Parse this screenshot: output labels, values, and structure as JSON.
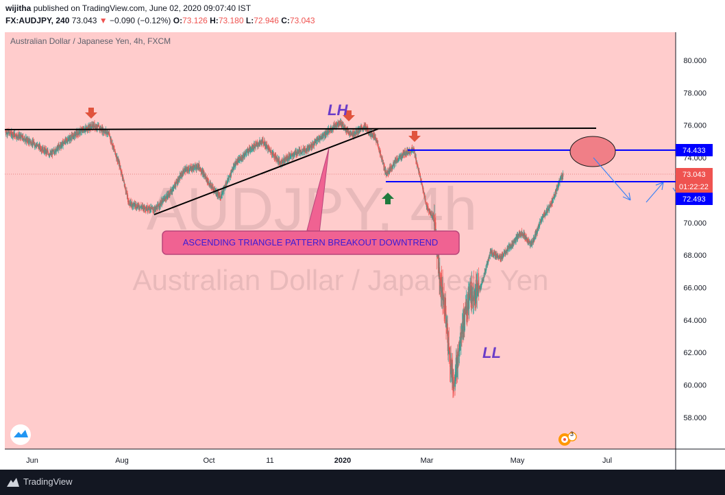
{
  "header": {
    "author": "wijitha",
    "published_text": "published on TradingView.com, June 02, 2020 09:07:40 IST",
    "symbol": "FX:AUDJPY, 240",
    "last": "73.043",
    "change": "−0.090 (−0.12%)",
    "o_label": "O:",
    "o": "73.126",
    "h_label": "H:",
    "h": "73.180",
    "l_label": "L:",
    "l": "72.946",
    "c_label": "C:",
    "c": "73.043"
  },
  "chart": {
    "legend": "Australian Dollar / Japanese Yen, 4h, FXCM",
    "watermark_symbol": "AUDJPY, 4h",
    "watermark_name": "Australian Dollar / Japanese Yen",
    "annotation_box": "ASCENDING TRIANGLE PATTERN BREAKOUT DOWNTREND",
    "label_lh": "LH",
    "label_ll": "LL",
    "price_badges": {
      "upper_level": "74.433",
      "last_price": "73.043",
      "countdown": "01:22:22",
      "lower_level": "72.493"
    },
    "badge_count": "3"
  },
  "footer": {
    "brand": "TradingView"
  },
  "colors": {
    "background": "#ffcccc",
    "up_candle": "#26a69a",
    "down_candle": "#ef5350",
    "level_line": "#0000ff",
    "annotation_fill": "#f06292",
    "annotation_text": "#3a1bd6",
    "label_purple": "#6a3cc8"
  },
  "chart_data": {
    "type": "candlestick",
    "timeframe": "4h",
    "x_ticks": [
      "Jun",
      "Aug",
      "Oct",
      "11",
      "2020",
      "Mar",
      "May",
      "Jul"
    ],
    "y_ticks": [
      80.0,
      78.0,
      76.0,
      74.0,
      72.0,
      70.0,
      68.0,
      66.0,
      64.0,
      62.0,
      60.0,
      58.0
    ],
    "ylim": [
      56.3,
      81.2
    ],
    "approx_close_path": [
      [
        "2019-05-15",
        75.6
      ],
      [
        "2019-05-25",
        75.3
      ],
      [
        "2019-06-05",
        74.8
      ],
      [
        "2019-06-15",
        74.2
      ],
      [
        "2019-06-25",
        75.0
      ],
      [
        "2019-07-05",
        75.6
      ],
      [
        "2019-07-15",
        76.0
      ],
      [
        "2019-07-25",
        75.5
      ],
      [
        "2019-08-02",
        73.4
      ],
      [
        "2019-08-08",
        71.2
      ],
      [
        "2019-08-15",
        71.0
      ],
      [
        "2019-08-26",
        70.8
      ],
      [
        "2019-09-05",
        71.8
      ],
      [
        "2019-09-15",
        73.2
      ],
      [
        "2019-09-25",
        73.5
      ],
      [
        "2019-10-03",
        72.3
      ],
      [
        "2019-10-10",
        71.6
      ],
      [
        "2019-10-20",
        73.6
      ],
      [
        "2019-10-31",
        74.6
      ],
      [
        "2019-11-08",
        75.0
      ],
      [
        "2019-11-20",
        73.7
      ],
      [
        "2019-12-01",
        74.3
      ],
      [
        "2019-12-10",
        74.6
      ],
      [
        "2019-12-20",
        75.4
      ],
      [
        "2019-12-31",
        76.2
      ],
      [
        "2020-01-08",
        75.4
      ],
      [
        "2020-01-17",
        75.9
      ],
      [
        "2020-01-25",
        75.2
      ],
      [
        "2020-02-01",
        73.0
      ],
      [
        "2020-02-08",
        73.8
      ],
      [
        "2020-02-14",
        74.3
      ],
      [
        "2020-02-20",
        74.5
      ],
      [
        "2020-02-25",
        72.6
      ],
      [
        "2020-02-29",
        71.0
      ],
      [
        "2020-03-05",
        70.2
      ],
      [
        "2020-03-09",
        66.5
      ],
      [
        "2020-03-12",
        65.3
      ],
      [
        "2020-03-16",
        61.5
      ],
      [
        "2020-03-19",
        60.0
      ],
      [
        "2020-03-24",
        63.5
      ],
      [
        "2020-03-30",
        65.5
      ],
      [
        "2020-04-06",
        66.0
      ],
      [
        "2020-04-13",
        68.2
      ],
      [
        "2020-04-20",
        67.8
      ],
      [
        "2020-04-27",
        68.6
      ],
      [
        "2020-05-04",
        69.4
      ],
      [
        "2020-05-11",
        68.6
      ],
      [
        "2020-05-18",
        70.2
      ],
      [
        "2020-05-25",
        71.2
      ],
      [
        "2020-05-29",
        72.2
      ],
      [
        "2020-06-02",
        73.0
      ]
    ],
    "horizontal_levels": [
      {
        "type": "resistance_line",
        "price": 75.8
      },
      {
        "type": "blue_level",
        "price": 74.433
      },
      {
        "type": "blue_level",
        "price": 72.493
      }
    ],
    "ascending_trendline": [
      [
        "2019-08-26",
        70.5
      ],
      [
        "2020-01-25",
        75.8
      ]
    ],
    "markers": [
      {
        "type": "down_arrow",
        "date": "2019-07-15"
      },
      {
        "type": "down_arrow",
        "date": "2020-01-08"
      },
      {
        "type": "down_arrow",
        "date": "2020-02-18"
      },
      {
        "type": "up_arrow",
        "date": "2020-02-01"
      }
    ],
    "last_price": 73.043
  }
}
